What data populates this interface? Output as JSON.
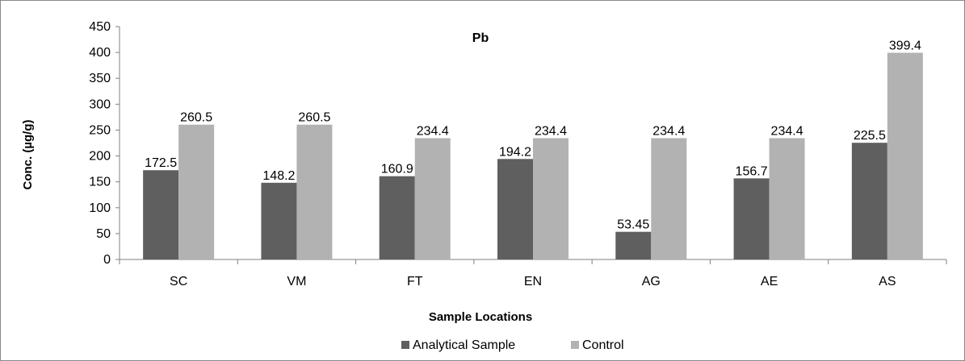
{
  "chart_data": {
    "type": "bar",
    "title": "Pb",
    "xlabel": "Sample Locations",
    "ylabel": "Conc. (µg/g)",
    "ylim": [
      0,
      450
    ],
    "yticks": [
      0,
      50,
      100,
      150,
      200,
      250,
      300,
      350,
      400,
      450
    ],
    "categories": [
      "SC",
      "VM",
      "FT",
      "EN",
      "AG",
      "AE",
      "AS"
    ],
    "series": [
      {
        "name": "Analytical Sample",
        "color": "#5f5f5f",
        "values": [
          172.5,
          148.2,
          160.9,
          194.2,
          53.45,
          156.7,
          225.5
        ],
        "labels": [
          "172.5",
          "148.2",
          "160.9",
          "194.2",
          "53.45",
          "156.7",
          "225.5"
        ]
      },
      {
        "name": "Control",
        "color": "#b2b2b2",
        "values": [
          260.5,
          260.5,
          234.4,
          234.4,
          234.4,
          234.4,
          399.4
        ],
        "labels": [
          "260.5",
          "260.5",
          "234.4",
          "234.4",
          "234.4",
          "234.4",
          "399.4"
        ]
      }
    ],
    "legend": "bottom",
    "grid": false
  }
}
